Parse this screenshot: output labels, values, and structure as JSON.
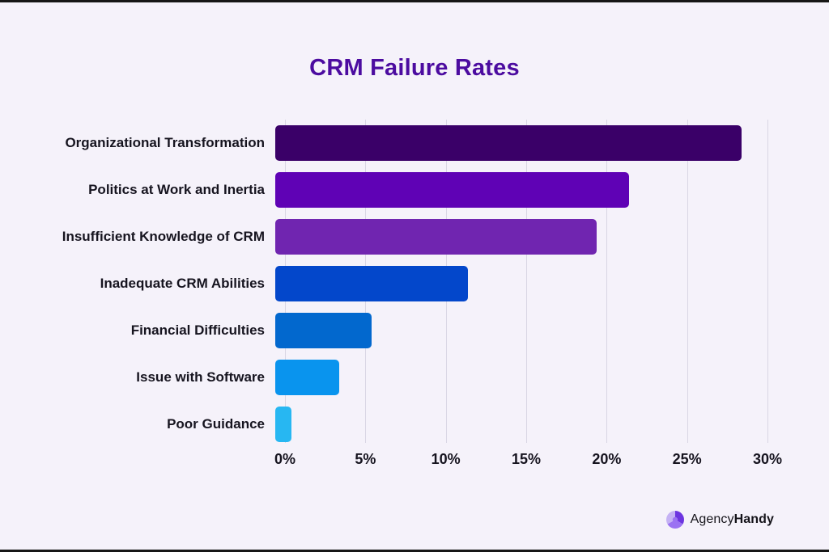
{
  "page": {
    "background_color": "#F5F2FA",
    "edge_strip_color": "#161616"
  },
  "title": {
    "text": "CRM Failure Rates",
    "color": "#4C0CA0"
  },
  "chart_data": {
    "type": "bar",
    "orientation": "horizontal",
    "title": "CRM Failure Rates",
    "categories": [
      "Organizational Transformation",
      "Politics at Work and Inertia",
      "Insufficient Knowledge of CRM",
      "Inadequate CRM Abilities",
      "Financial Difficulties",
      "Issue with Software",
      "Poor Guidance"
    ],
    "values": [
      29,
      22,
      20,
      12,
      6,
      4,
      1
    ],
    "unit": "%",
    "bar_colors": [
      "#3A0068",
      "#5F02B5",
      "#7025B0",
      "#0347CB",
      "#0268CE",
      "#0994EE",
      "#27B7F2"
    ],
    "x_ticks": [
      "0%",
      "5%",
      "10%",
      "15%",
      "20%",
      "25%",
      "30%"
    ],
    "xlim": [
      0,
      30
    ],
    "grid": "vertical",
    "gridline_color": "#D9D6E4",
    "legend": "none"
  },
  "branding": {
    "name_regular": "Agency",
    "name_bold": "Handy",
    "icon": "swirl-logo-icon",
    "icon_colors": [
      "#6D35E0",
      "#9B72F2",
      "#C5B2F4"
    ]
  }
}
